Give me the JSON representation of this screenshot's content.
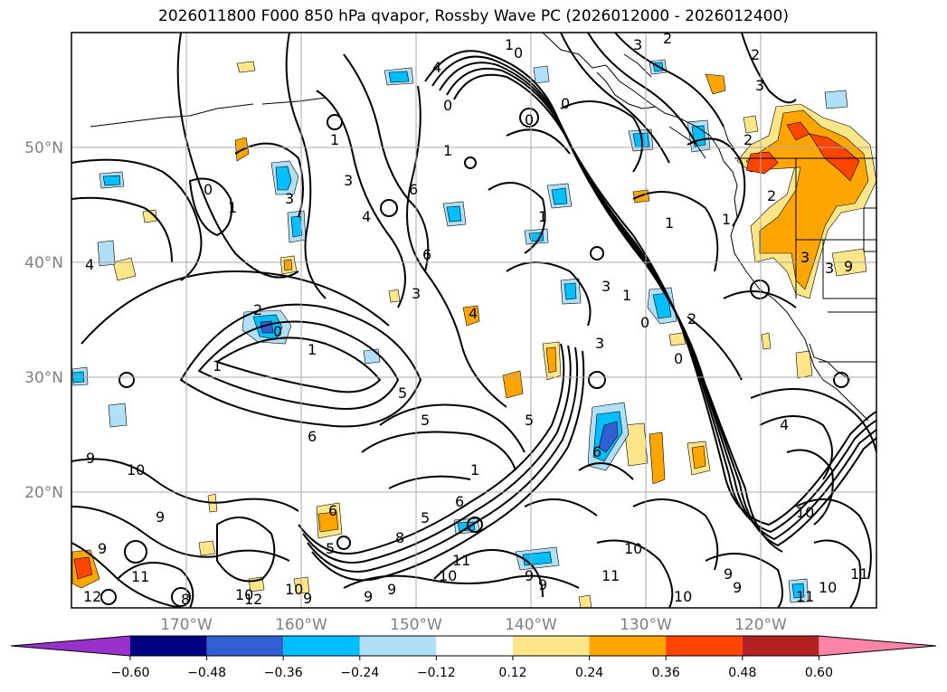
{
  "title": "2026011800 F000 850 hPa qvapor, Rossby Wave PC (2026012000 - 2026012400)",
  "lat_labels": [
    "50°N",
    "40°N",
    "30°N",
    "20°N"
  ],
  "lon_labels": [
    "170°W",
    "160°W",
    "150°W",
    "140°W",
    "130°W",
    "120°W"
  ],
  "colorbar": {
    "ticks": [
      "−0.60",
      "−0.48",
      "−0.36",
      "−0.24",
      "−0.12",
      "0.12",
      "0.24",
      "0.36",
      "0.48",
      "0.60"
    ],
    "colors": [
      "#9932cc",
      "#000080",
      "#3060d0",
      "#00bfff",
      "#b0e0f8",
      "#ffffff",
      "#fde68a",
      "#ffa500",
      "#ff4500",
      "#b22222",
      "#ff85a8"
    ]
  },
  "fill_colors": {
    "light_orange": "#fde68a",
    "orange": "#ffa500",
    "red_orange": "#ff4500",
    "light_blue": "#b0e0f8",
    "sky_blue": "#00bfff",
    "royal_blue": "#3060d0"
  },
  "contour_labels": [
    "0",
    "1",
    "2",
    "3",
    "4",
    "5",
    "6",
    "8",
    "9",
    "10",
    "11",
    "12"
  ]
}
